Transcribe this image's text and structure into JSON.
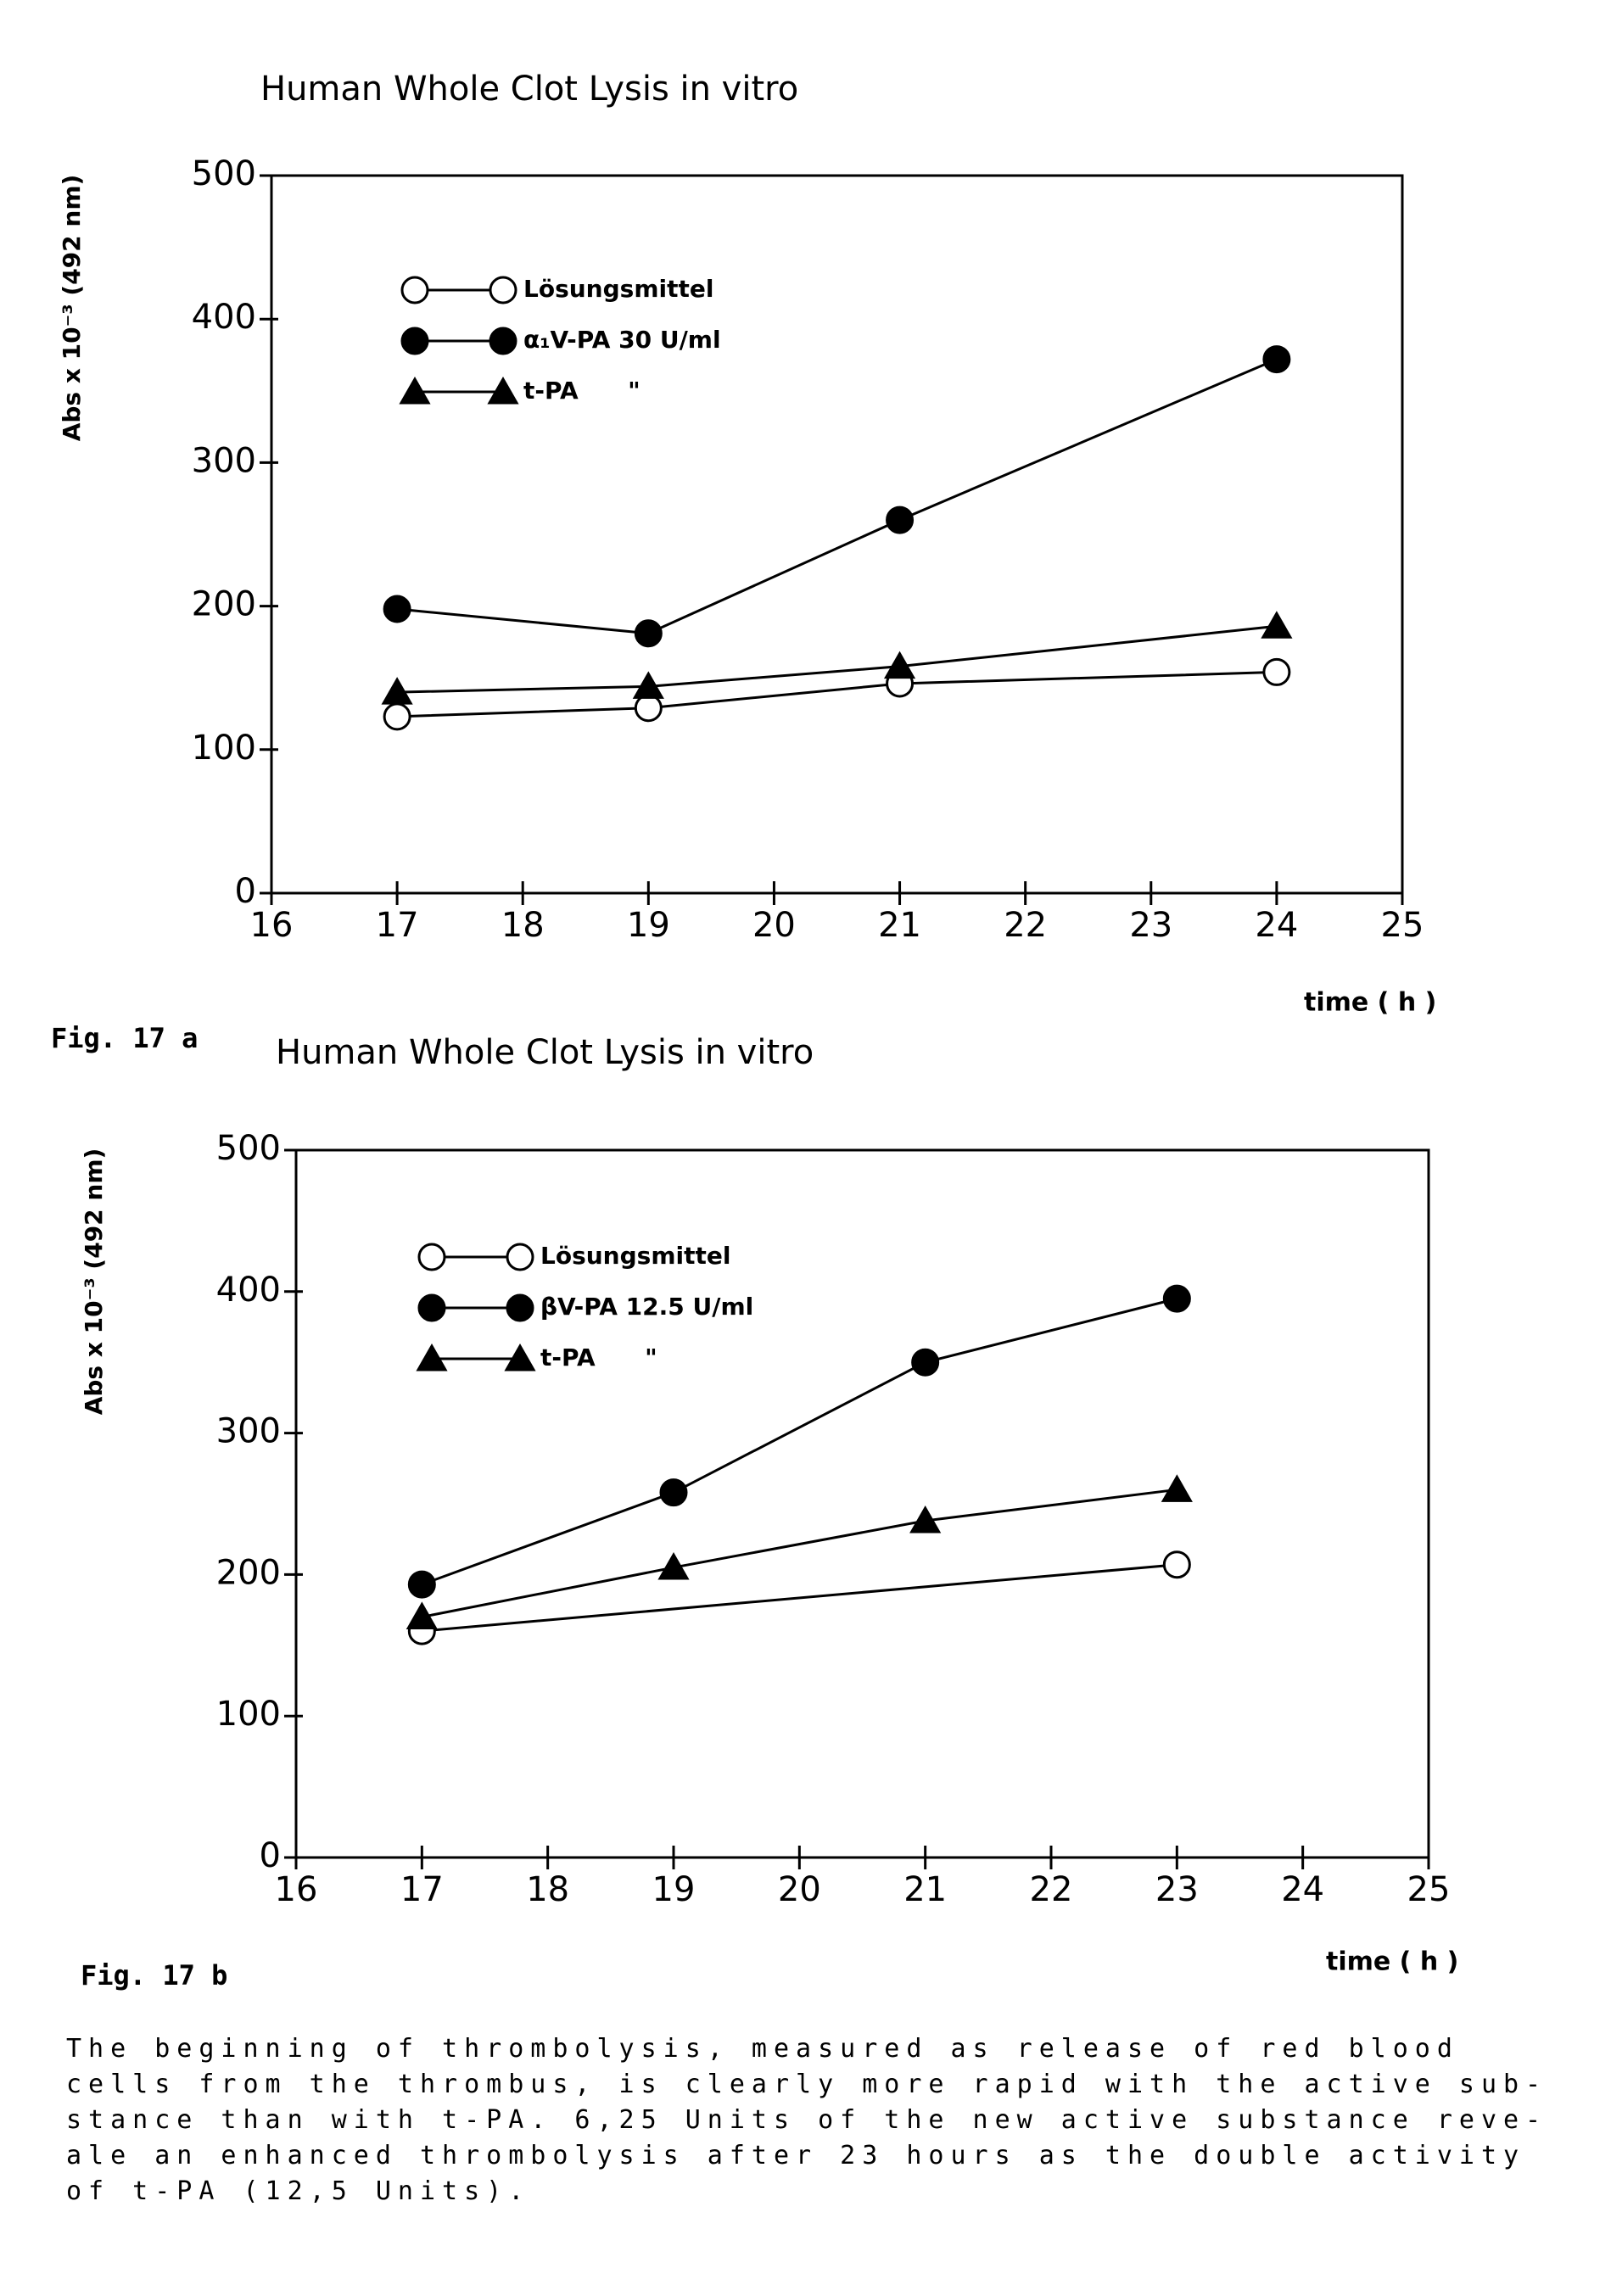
{
  "chart_data": [
    {
      "type": "line",
      "title": "Human Whole Clot Lysis in vitro",
      "x_label": "time ( h )",
      "y_label": "Abs x 10⁻³ (492 nm)",
      "figure_label": "Fig. 17 a",
      "xlim": [
        16,
        25
      ],
      "xticks": [
        16,
        17,
        18,
        19,
        20,
        21,
        22,
        23,
        24,
        25
      ],
      "ylim": [
        0,
        500
      ],
      "yticks": [
        0,
        100,
        200,
        300,
        400,
        500
      ],
      "legend": "upper left",
      "series": [
        {
          "name": "Lösungsmittel",
          "color": "#000000",
          "marker": "open-circle",
          "x": [
            17,
            19,
            21,
            24
          ],
          "values": [
            123,
            129,
            146,
            154
          ]
        },
        {
          "name": "α₁V-PA 30 U/ml",
          "color": "#000000",
          "marker": "filled-circle",
          "x": [
            17,
            19,
            21,
            24
          ],
          "values": [
            198,
            181,
            260,
            372
          ]
        },
        {
          "name": "t-PA      \"",
          "color": "#000000",
          "marker": "filled-triangle",
          "x": [
            17,
            19,
            21,
            24
          ],
          "values": [
            140,
            144,
            158,
            186
          ]
        }
      ]
    },
    {
      "type": "line",
      "title": "Human Whole Clot Lysis in vitro",
      "x_label": "time ( h )",
      "y_label": "Abs x 10⁻³ (492 nm)",
      "figure_label": "Fig. 17 b",
      "xlim": [
        16,
        25
      ],
      "xticks": [
        16,
        17,
        18,
        19,
        20,
        21,
        22,
        23,
        24,
        25
      ],
      "ylim": [
        0,
        500
      ],
      "yticks": [
        0,
        100,
        200,
        300,
        400,
        500
      ],
      "legend": "upper left",
      "series": [
        {
          "name": "Lösungsmittel",
          "color": "#000000",
          "marker": "open-circle",
          "x": [
            17,
            23
          ],
          "values": [
            160,
            207
          ]
        },
        {
          "name": "βV-PA 12.5 U/ml",
          "color": "#000000",
          "marker": "filled-circle",
          "x": [
            17,
            19,
            21,
            23
          ],
          "values": [
            193,
            258,
            350,
            395
          ]
        },
        {
          "name": "t-PA      \"",
          "color": "#000000",
          "marker": "filled-triangle",
          "x": [
            17,
            19,
            21,
            23
          ],
          "values": [
            170,
            205,
            238,
            260
          ]
        }
      ]
    }
  ],
  "caption": [
    "The beginning of thrombolysis, measured as release of red blood",
    "cells from the thrombus, is clearly more rapid with the active sub-",
    "stance than with t-PA. 6,25 Units of the new active substance reve-",
    "ale an enhanced thrombolysis after 23 hours as the double activity",
    "of t-PA (12,5 Units)."
  ]
}
